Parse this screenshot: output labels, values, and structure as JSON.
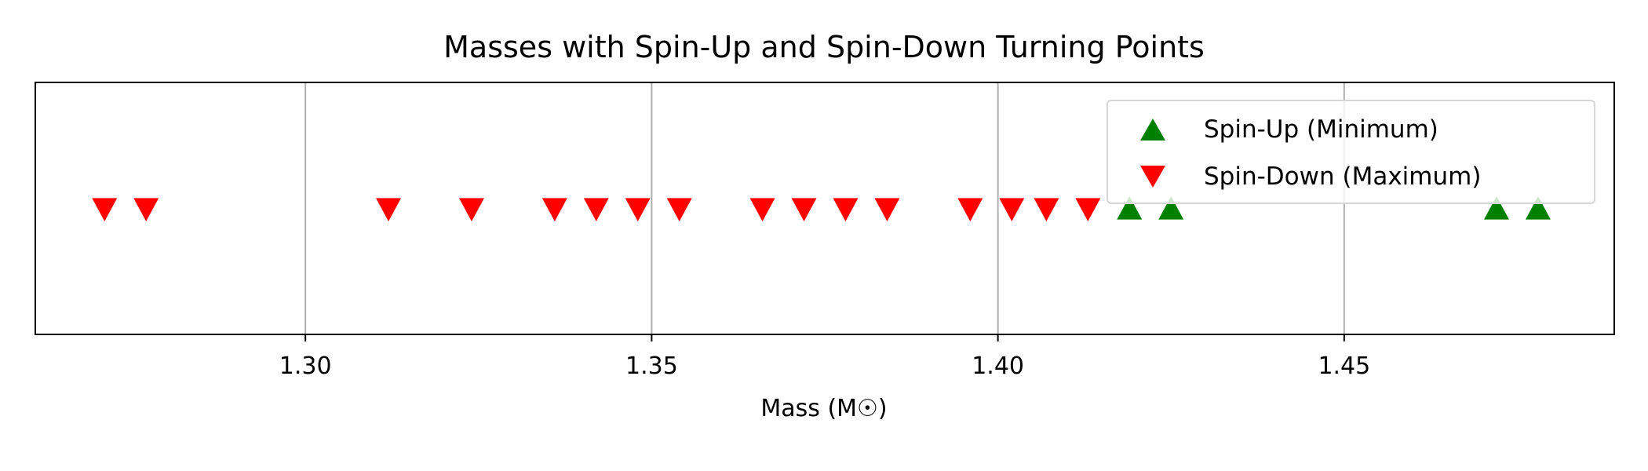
{
  "chart_data": {
    "type": "scatter",
    "title": "Masses with Spin-Up and Spin-Down Turning Points",
    "xlabel": "Mass (M☉)",
    "ylabel": "",
    "xlim": [
      1.261,
      1.489
    ],
    "xticks": [
      1.3,
      1.35,
      1.4,
      1.45
    ],
    "xtick_labels": [
      "1.30",
      "1.35",
      "1.40",
      "1.45"
    ],
    "y_ticks_visible": false,
    "grid": "vertical",
    "legend_position": "upper right",
    "series": [
      {
        "name": "Spin-Up (Minimum)",
        "marker": "triangle-up",
        "color": "#008000",
        "x": [
          1.419,
          1.425,
          1.472,
          1.478
        ],
        "y": [
          0,
          0,
          0,
          0
        ]
      },
      {
        "name": "Spin-Down (Maximum)",
        "marker": "triangle-down",
        "color": "#ff0000",
        "x": [
          1.271,
          1.277,
          1.312,
          1.324,
          1.336,
          1.342,
          1.348,
          1.354,
          1.366,
          1.372,
          1.378,
          1.384,
          1.396,
          1.402,
          1.407,
          1.413
        ],
        "y": [
          0,
          0,
          0,
          0,
          0,
          0,
          0,
          0,
          0,
          0,
          0,
          0,
          0,
          0,
          0,
          0
        ]
      }
    ]
  }
}
